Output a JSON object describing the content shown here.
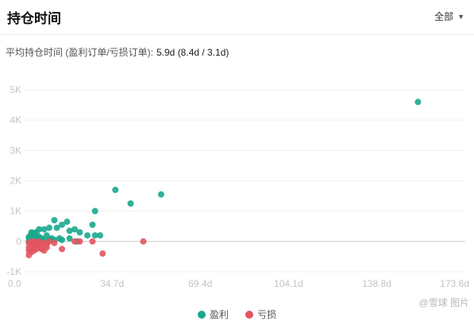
{
  "header": {
    "title": "持仓时间",
    "filter_label": "全部"
  },
  "summary": {
    "label": "平均持仓时间 (盈利订单/亏损订单):",
    "value": "5.9d (8.4d / 3.1d)"
  },
  "watermark": "@雪球 图片",
  "colors": {
    "profit": "#1aa88e",
    "loss": "#e25561"
  },
  "chart_data": {
    "type": "scatter",
    "title": "",
    "xlabel": "",
    "ylabel": "",
    "xlim": [
      0,
      173.6
    ],
    "ylim": [
      -1000,
      5000
    ],
    "x_ticks": [
      0,
      34.7,
      69.4,
      104.1,
      138.8,
      173.6
    ],
    "x_tick_labels": [
      "0.0",
      "34.7d",
      "69.4d",
      "104.1d",
      "138.8d",
      "173.6d"
    ],
    "y_ticks": [
      -1000,
      0,
      1000,
      2000,
      3000,
      4000,
      5000
    ],
    "y_tick_labels": [
      "-1K",
      "0",
      "1K",
      "2K",
      "3K",
      "4K",
      "5K"
    ],
    "grid": true,
    "legend_position": "bottom",
    "series": [
      {
        "name": "盈利",
        "color": "#1aa88e",
        "points": [
          [
            155,
            4600
          ],
          [
            36,
            1700
          ],
          [
            54,
            1550
          ],
          [
            42,
            1250
          ],
          [
            28,
            1000
          ],
          [
            12,
            700
          ],
          [
            17,
            650
          ],
          [
            15,
            550
          ],
          [
            27,
            550
          ],
          [
            13,
            450
          ],
          [
            10,
            450
          ],
          [
            8,
            400
          ],
          [
            6,
            400
          ],
          [
            20,
            400
          ],
          [
            18,
            350
          ],
          [
            22,
            300
          ],
          [
            5,
            300
          ],
          [
            4,
            280
          ],
          [
            3,
            300
          ],
          [
            3,
            250
          ],
          [
            4,
            200
          ],
          [
            5,
            150
          ],
          [
            6,
            150
          ],
          [
            7,
            100
          ],
          [
            25,
            200
          ],
          [
            28,
            200
          ],
          [
            30,
            200
          ],
          [
            14,
            100
          ],
          [
            18,
            100
          ],
          [
            9,
            200
          ],
          [
            11,
            100
          ],
          [
            2,
            150
          ],
          [
            2,
            100
          ],
          [
            3,
            50
          ],
          [
            4,
            80
          ],
          [
            5,
            50
          ],
          [
            6,
            50
          ],
          [
            2,
            0
          ],
          [
            3,
            0
          ],
          [
            8,
            50
          ],
          [
            12,
            50
          ],
          [
            21,
            0
          ],
          [
            15,
            50
          ],
          [
            4,
            200
          ],
          [
            7,
            50
          ],
          [
            10,
            50
          ]
        ]
      },
      {
        "name": "亏损",
        "color": "#e25561",
        "points": [
          [
            47,
            0
          ],
          [
            27,
            0
          ],
          [
            31,
            -400
          ],
          [
            15,
            -250
          ],
          [
            12,
            -50
          ],
          [
            9,
            -200
          ],
          [
            8,
            -300
          ],
          [
            7,
            -250
          ],
          [
            6,
            -150
          ],
          [
            5,
            -100
          ],
          [
            4,
            -200
          ],
          [
            3,
            -150
          ],
          [
            2,
            -300
          ],
          [
            2,
            -200
          ],
          [
            3,
            -100
          ],
          [
            4,
            -50
          ],
          [
            5,
            -50
          ],
          [
            6,
            0
          ],
          [
            7,
            -100
          ],
          [
            8,
            -50
          ],
          [
            2,
            -450
          ],
          [
            3,
            -350
          ],
          [
            4,
            -300
          ],
          [
            5,
            -250
          ],
          [
            2,
            -50
          ],
          [
            3,
            0
          ],
          [
            4,
            0
          ],
          [
            6,
            -200
          ],
          [
            9,
            -100
          ],
          [
            10,
            0
          ],
          [
            20,
            0
          ],
          [
            22,
            0
          ]
        ]
      }
    ]
  }
}
